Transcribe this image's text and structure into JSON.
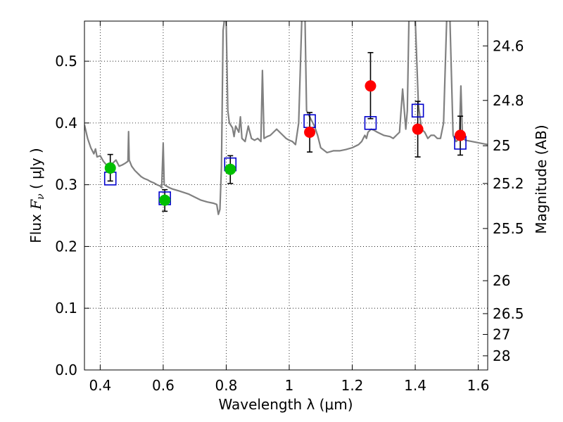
{
  "chart_data": {
    "type": "scatter",
    "xlabel": "Wavelength  λ (μm)",
    "ylabel_parts": {
      "pre": "Flux  ",
      "symbol": "F",
      "sub": "ν",
      "post": "  ( μJy )"
    },
    "y2label": "Magnitude (AB)",
    "xlim": [
      0.35,
      1.63
    ],
    "ylim": [
      0.0,
      0.565
    ],
    "x_ticks": [
      0.4,
      0.6,
      0.8,
      1.0,
      1.2,
      1.4,
      1.6
    ],
    "x_tick_labels": [
      "0.4",
      "0.6",
      "0.8",
      "1",
      "1.2",
      "1.4",
      "1.6"
    ],
    "y_ticks": [
      0.0,
      0.1,
      0.2,
      0.3,
      0.4,
      0.5
    ],
    "y_tick_labels": [
      "0.0",
      "0.1",
      "0.2",
      "0.3",
      "0.4",
      "0.5"
    ],
    "mag_ticks": [
      24.6,
      24.8,
      25,
      25.2,
      25.5,
      26,
      26.5,
      27,
      28
    ],
    "mag_tick_labels": [
      "24.6",
      "24.8",
      "25",
      "25.2",
      "25.5",
      "26",
      "26.5",
      "27",
      "28"
    ],
    "grid": true,
    "colors": {
      "spectrum": "#808080",
      "green": "#00bf00",
      "red": "#ff0000",
      "square": "#0000cc",
      "errorbar": "#000000"
    },
    "spectrum": {
      "name": "",
      "points": [
        [
          0.35,
          0.397
        ],
        [
          0.36,
          0.375
        ],
        [
          0.37,
          0.36
        ],
        [
          0.375,
          0.355
        ],
        [
          0.38,
          0.35
        ],
        [
          0.385,
          0.358
        ],
        [
          0.39,
          0.345
        ],
        [
          0.4,
          0.347
        ],
        [
          0.41,
          0.338
        ],
        [
          0.42,
          0.332
        ],
        [
          0.43,
          0.33
        ],
        [
          0.44,
          0.335
        ],
        [
          0.45,
          0.34
        ],
        [
          0.46,
          0.33
        ],
        [
          0.47,
          0.332
        ],
        [
          0.48,
          0.335
        ],
        [
          0.488,
          0.338
        ],
        [
          0.49,
          0.386
        ],
        [
          0.492,
          0.34
        ],
        [
          0.5,
          0.33
        ],
        [
          0.51,
          0.323
        ],
        [
          0.52,
          0.318
        ],
        [
          0.53,
          0.313
        ],
        [
          0.54,
          0.31
        ],
        [
          0.55,
          0.308
        ],
        [
          0.56,
          0.305
        ],
        [
          0.57,
          0.303
        ],
        [
          0.58,
          0.3
        ],
        [
          0.59,
          0.298
        ],
        [
          0.595,
          0.295
        ],
        [
          0.6,
          0.367
        ],
        [
          0.603,
          0.3
        ],
        [
          0.61,
          0.298
        ],
        [
          0.62,
          0.295
        ],
        [
          0.63,
          0.293
        ],
        [
          0.65,
          0.29
        ],
        [
          0.68,
          0.285
        ],
        [
          0.7,
          0.28
        ],
        [
          0.72,
          0.275
        ],
        [
          0.74,
          0.272
        ],
        [
          0.76,
          0.27
        ],
        [
          0.77,
          0.268
        ],
        [
          0.775,
          0.252
        ],
        [
          0.78,
          0.26
        ],
        [
          0.785,
          0.33
        ],
        [
          0.79,
          0.55
        ],
        [
          0.795,
          0.57
        ],
        [
          0.8,
          0.565
        ],
        [
          0.805,
          0.42
        ],
        [
          0.81,
          0.4
        ],
        [
          0.82,
          0.392
        ],
        [
          0.825,
          0.378
        ],
        [
          0.83,
          0.395
        ],
        [
          0.84,
          0.385
        ],
        [
          0.845,
          0.41
        ],
        [
          0.85,
          0.375
        ],
        [
          0.86,
          0.37
        ],
        [
          0.87,
          0.395
        ],
        [
          0.88,
          0.375
        ],
        [
          0.89,
          0.372
        ],
        [
          0.9,
          0.375
        ],
        [
          0.91,
          0.37
        ],
        [
          0.915,
          0.485
        ],
        [
          0.92,
          0.375
        ],
        [
          0.93,
          0.378
        ],
        [
          0.94,
          0.38
        ],
        [
          0.95,
          0.385
        ],
        [
          0.96,
          0.39
        ],
        [
          0.97,
          0.385
        ],
        [
          0.98,
          0.38
        ],
        [
          0.99,
          0.375
        ],
        [
          1.0,
          0.372
        ],
        [
          1.01,
          0.37
        ],
        [
          1.02,
          0.365
        ],
        [
          1.03,
          0.4
        ],
        [
          1.04,
          0.57
        ],
        [
          1.05,
          0.57
        ],
        [
          1.055,
          0.42
        ],
        [
          1.06,
          0.415
        ],
        [
          1.07,
          0.405
        ],
        [
          1.08,
          0.395
        ],
        [
          1.09,
          0.38
        ],
        [
          1.1,
          0.36
        ],
        [
          1.12,
          0.352
        ],
        [
          1.14,
          0.355
        ],
        [
          1.16,
          0.355
        ],
        [
          1.18,
          0.357
        ],
        [
          1.2,
          0.36
        ],
        [
          1.22,
          0.365
        ],
        [
          1.23,
          0.37
        ],
        [
          1.24,
          0.38
        ],
        [
          1.245,
          0.375
        ],
        [
          1.25,
          0.385
        ],
        [
          1.26,
          0.39
        ],
        [
          1.27,
          0.388
        ],
        [
          1.28,
          0.385
        ],
        [
          1.3,
          0.38
        ],
        [
          1.32,
          0.378
        ],
        [
          1.33,
          0.375
        ],
        [
          1.34,
          0.38
        ],
        [
          1.35,
          0.385
        ],
        [
          1.36,
          0.455
        ],
        [
          1.37,
          0.39
        ],
        [
          1.375,
          0.42
        ],
        [
          1.38,
          0.57
        ],
        [
          1.39,
          0.57
        ],
        [
          1.4,
          0.57
        ],
        [
          1.41,
          0.43
        ],
        [
          1.42,
          0.39
        ],
        [
          1.43,
          0.385
        ],
        [
          1.44,
          0.375
        ],
        [
          1.45,
          0.38
        ],
        [
          1.46,
          0.38
        ],
        [
          1.47,
          0.375
        ],
        [
          1.48,
          0.375
        ],
        [
          1.49,
          0.4
        ],
        [
          1.5,
          0.57
        ],
        [
          1.51,
          0.57
        ],
        [
          1.52,
          0.38
        ],
        [
          1.53,
          0.37
        ],
        [
          1.54,
          0.375
        ],
        [
          1.545,
          0.46
        ],
        [
          1.55,
          0.375
        ],
        [
          1.56,
          0.372
        ],
        [
          1.58,
          0.37
        ],
        [
          1.6,
          0.368
        ],
        [
          1.63,
          0.365
        ]
      ]
    },
    "green_points": [
      {
        "x": 0.432,
        "y": 0.327,
        "yerr": [
          0.306,
          0.349
        ]
      },
      {
        "x": 0.605,
        "y": 0.275,
        "yerr": [
          0.257,
          0.292
        ]
      },
      {
        "x": 0.813,
        "y": 0.325,
        "yerr": [
          0.302,
          0.347
        ]
      }
    ],
    "red_points": [
      {
        "x": 1.065,
        "y": 0.385,
        "yerr": [
          0.353,
          0.417
        ]
      },
      {
        "x": 1.258,
        "y": 0.46,
        "yerr": [
          0.407,
          0.514
        ]
      },
      {
        "x": 1.408,
        "y": 0.39,
        "yerr": [
          0.345,
          0.435
        ]
      },
      {
        "x": 1.543,
        "y": 0.38,
        "yerr": [
          0.348,
          0.411
        ]
      }
    ],
    "model_squares": [
      {
        "x": 0.432,
        "y": 0.31
      },
      {
        "x": 0.605,
        "y": 0.278
      },
      {
        "x": 0.813,
        "y": 0.333
      },
      {
        "x": 1.065,
        "y": 0.403
      },
      {
        "x": 1.258,
        "y": 0.4
      },
      {
        "x": 1.408,
        "y": 0.42
      },
      {
        "x": 1.543,
        "y": 0.368
      }
    ]
  }
}
